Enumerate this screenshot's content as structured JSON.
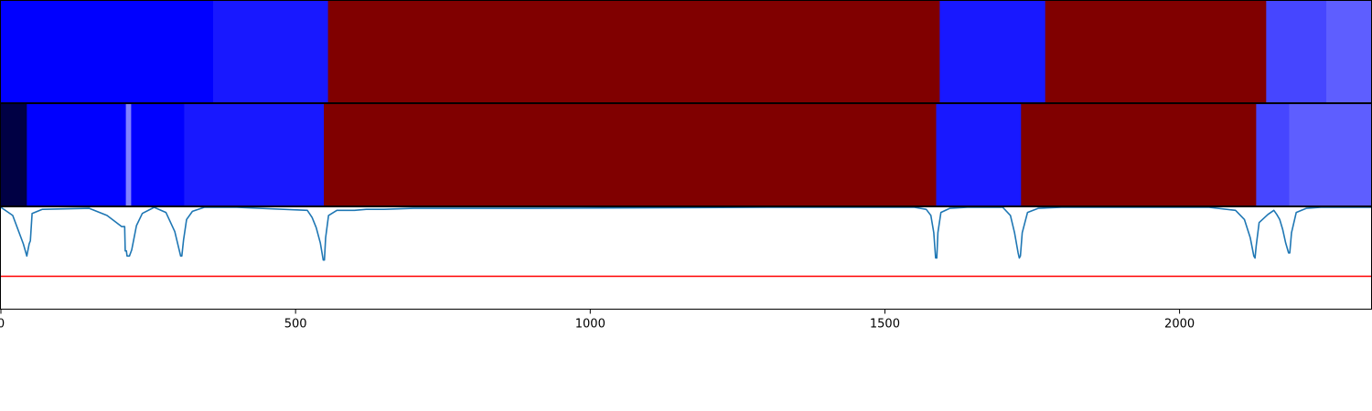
{
  "chart_data": [
    {
      "type": "heatmap",
      "panel": "top-bar",
      "xlim": [
        0,
        2325
      ],
      "segments": [
        {
          "start": 0,
          "end": 360,
          "color": "#0000ff"
        },
        {
          "start": 360,
          "end": 555,
          "color": "#1818ff"
        },
        {
          "start": 555,
          "end": 1593,
          "color": "#800000"
        },
        {
          "start": 1593,
          "end": 1772,
          "color": "#1818ff"
        },
        {
          "start": 1772,
          "end": 2147,
          "color": "#800000"
        },
        {
          "start": 2147,
          "end": 2249,
          "color": "#4646ff"
        },
        {
          "start": 2249,
          "end": 2325,
          "color": "#5e5eff"
        }
      ]
    },
    {
      "type": "heatmap",
      "panel": "middle-bar",
      "xlim": [
        0,
        2325
      ],
      "segments": [
        {
          "start": 0,
          "end": 44,
          "color": "#000044"
        },
        {
          "start": 44,
          "end": 212,
          "color": "#0000ff"
        },
        {
          "start": 212,
          "end": 221,
          "color": "#8080ff"
        },
        {
          "start": 221,
          "end": 311,
          "color": "#0000ff"
        },
        {
          "start": 311,
          "end": 548,
          "color": "#1818ff"
        },
        {
          "start": 548,
          "end": 1587,
          "color": "#800000"
        },
        {
          "start": 1587,
          "end": 1731,
          "color": "#1818ff"
        },
        {
          "start": 1731,
          "end": 2130,
          "color": "#800000"
        },
        {
          "start": 2130,
          "end": 2186,
          "color": "#4646ff"
        },
        {
          "start": 2186,
          "end": 2325,
          "color": "#5e5eff"
        }
      ]
    },
    {
      "type": "line",
      "panel": "bottom-line",
      "xlim": [
        0,
        2325
      ],
      "ylim": [
        -1.0,
        0.0
      ],
      "series": [
        {
          "color": "#1f77b4",
          "x": [
            0,
            20,
            38,
            44,
            48,
            50,
            53,
            70,
            150,
            180,
            205,
            210,
            211,
            213,
            214,
            218,
            222,
            226,
            230,
            240,
            260,
            280,
            295,
            305,
            307,
            310,
            315,
            325,
            345,
            400,
            520,
            528,
            535,
            542,
            547,
            549,
            551,
            556,
            570,
            600,
            620,
            650,
            700,
            900,
            1300,
            1550,
            1570,
            1578,
            1583,
            1586,
            1588,
            1590,
            1595,
            1610,
            1640,
            1700,
            1713,
            1720,
            1726,
            1728,
            1730,
            1733,
            1742,
            1760,
            1800,
            2050,
            2095,
            2110,
            2120,
            2126,
            2128,
            2130,
            2135,
            2150,
            2160,
            2165,
            2170,
            2175,
            2180,
            2185,
            2187,
            2190,
            2198,
            2215,
            2240,
            2325
          ],
          "y": [
            0.0,
            -0.08,
            -0.36,
            -0.48,
            -0.36,
            -0.33,
            -0.06,
            -0.02,
            -0.01,
            -0.08,
            -0.19,
            -0.19,
            -0.43,
            -0.43,
            -0.48,
            -0.48,
            -0.42,
            -0.3,
            -0.18,
            -0.06,
            0.0,
            -0.05,
            -0.24,
            -0.48,
            -0.48,
            -0.32,
            -0.12,
            -0.04,
            0.0,
            0.0,
            -0.03,
            -0.1,
            -0.2,
            -0.35,
            -0.52,
            -0.52,
            -0.3,
            -0.08,
            -0.03,
            -0.03,
            -0.02,
            -0.02,
            -0.01,
            -0.01,
            0.0,
            0.0,
            -0.02,
            -0.08,
            -0.25,
            -0.5,
            -0.5,
            -0.25,
            -0.05,
            -0.01,
            0.0,
            0.0,
            -0.08,
            -0.25,
            -0.45,
            -0.5,
            -0.48,
            -0.25,
            -0.05,
            -0.01,
            0.0,
            0.0,
            -0.03,
            -0.12,
            -0.3,
            -0.48,
            -0.5,
            -0.38,
            -0.15,
            -0.07,
            -0.03,
            -0.07,
            -0.12,
            -0.22,
            -0.35,
            -0.45,
            -0.45,
            -0.25,
            -0.05,
            -0.01,
            0.0,
            0.0
          ]
        },
        {
          "color": "#ff0000",
          "x": [
            0,
            2325
          ],
          "y": [
            -0.68,
            -0.68
          ]
        }
      ]
    }
  ],
  "x_axis": {
    "ticks": [
      {
        "value": 0,
        "label": "0"
      },
      {
        "value": 500,
        "label": "500"
      },
      {
        "value": 1000,
        "label": "1000"
      },
      {
        "value": 1500,
        "label": "1500"
      },
      {
        "value": 2000,
        "label": "2000"
      }
    ]
  }
}
